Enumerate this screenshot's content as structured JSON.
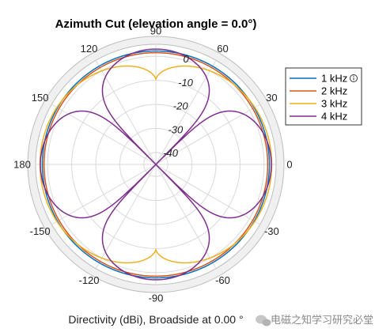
{
  "chart_data": {
    "type": "polar-line",
    "title": "Azimuth Cut (elevation angle = 0.0°)",
    "caption": "Directivity (dBi), Broadside at 0.00 °",
    "angle_ticks": [
      {
        "deg": 0,
        "label": "0"
      },
      {
        "deg": 30,
        "label": "30"
      },
      {
        "deg": 60,
        "label": "60"
      },
      {
        "deg": 90,
        "label": "90"
      },
      {
        "deg": 120,
        "label": "120"
      },
      {
        "deg": 150,
        "label": "150"
      },
      {
        "deg": 180,
        "label": "180"
      },
      {
        "deg": -150,
        "label": "-150"
      },
      {
        "deg": -120,
        "label": "-120"
      },
      {
        "deg": -90,
        "label": "-90"
      },
      {
        "deg": -60,
        "label": "-60"
      },
      {
        "deg": -30,
        "label": "-30"
      }
    ],
    "r_ticks": [
      {
        "value": 0,
        "label": "0"
      },
      {
        "value": -10,
        "label": "-10"
      },
      {
        "value": -20,
        "label": "-20"
      },
      {
        "value": -30,
        "label": "-30"
      },
      {
        "value": -40,
        "label": "-40"
      }
    ],
    "r_range": [
      -45,
      5
    ],
    "series": [
      {
        "name": "1 kHz",
        "color": "#0072BD",
        "gain_db": 2.2,
        "kind": "omni"
      },
      {
        "name": "2 kHz",
        "color": "#D95319",
        "gain_db": 1.5,
        "kind": "omni"
      },
      {
        "name": "3 kHz",
        "color": "#EDB120",
        "side_db": 3.2,
        "top_db": -9.5,
        "kind": "flattened"
      },
      {
        "name": "4 kHz",
        "color": "#7E2F8E",
        "peak_db": 3.0,
        "kind": "four-lobe"
      }
    ]
  },
  "legend": {
    "items": [
      {
        "label": "1 kHz",
        "color": "#0072BD",
        "icon": "info-circle-icon"
      },
      {
        "label": "2 kHz",
        "color": "#D95319"
      },
      {
        "label": "3 kHz",
        "color": "#EDB120"
      },
      {
        "label": "4 kHz",
        "color": "#7E2F8E"
      }
    ]
  },
  "watermark": {
    "icon": "wechat-icon",
    "text": "电磁之知学习研究必堂"
  }
}
